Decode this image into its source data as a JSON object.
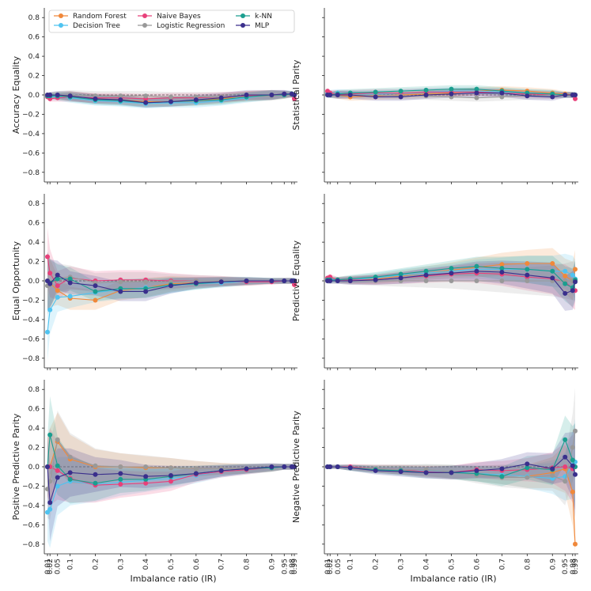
{
  "chart_data": {
    "type": "line",
    "x": [
      "0.01",
      "0.02",
      "0.05",
      "0.1",
      "0.2",
      "0.3",
      "0.4",
      "0.5",
      "0.6",
      "0.7",
      "0.8",
      "0.9",
      "0.95",
      "0.98",
      "0.99"
    ],
    "xlabel": "Imbalance ratio (IR)",
    "ylim": [
      -0.9,
      0.9
    ],
    "yticks": [
      "0.8",
      "0.6",
      "0.4",
      "0.2",
      "0.0",
      "−0.2",
      "−0.4",
      "−0.6",
      "−0.8"
    ],
    "legend": [
      {
        "name": "Random Forest",
        "color": "#f0883a"
      },
      {
        "name": "Decision Tree",
        "color": "#4fc3f0"
      },
      {
        "name": "Naive Bayes",
        "color": "#e8407a"
      },
      {
        "name": "Logistic Regression",
        "color": "#999999"
      },
      {
        "name": "k-NN",
        "color": "#1a9e8f"
      },
      {
        "name": "MLP",
        "color": "#3a2f8c"
      }
    ],
    "panels": [
      {
        "ylabel": "Accuracy Equality",
        "band": [
          0.02,
          0.03,
          0.04,
          0.05,
          0.05,
          0.05,
          0.05,
          0.05,
          0.05,
          0.05,
          0.05,
          0.05,
          0.04,
          0.03,
          0.03
        ],
        "series": [
          [
            0,
            -0.01,
            -0.01,
            -0.01,
            -0.04,
            -0.05,
            -0.07,
            -0.07,
            -0.06,
            -0.04,
            -0.01,
            0,
            0,
            0.01,
            0
          ],
          [
            -0.01,
            -0.02,
            -0.02,
            -0.03,
            -0.06,
            -0.07,
            -0.09,
            -0.08,
            -0.08,
            -0.06,
            -0.03,
            0,
            0.01,
            0.01,
            0
          ],
          [
            -0.02,
            -0.04,
            -0.03,
            -0.02,
            -0.03,
            -0.03,
            -0.04,
            -0.03,
            -0.03,
            -0.02,
            -0.01,
            0,
            0.01,
            0,
            -0.04
          ],
          [
            0,
            0,
            0,
            0,
            -0.01,
            -0.01,
            -0.01,
            -0.02,
            -0.02,
            -0.02,
            -0.02,
            -0.01,
            0,
            0,
            0
          ],
          [
            -0.01,
            -0.01,
            -0.01,
            -0.02,
            -0.05,
            -0.06,
            -0.08,
            -0.07,
            -0.06,
            -0.05,
            -0.02,
            0,
            0,
            0.01,
            0
          ],
          [
            0,
            0,
            0,
            -0.01,
            -0.04,
            -0.05,
            -0.08,
            -0.07,
            -0.05,
            -0.03,
            0,
            0,
            0.01,
            0.01,
            0
          ]
        ]
      },
      {
        "ylabel": "Statistical Parity",
        "band": [
          0.03,
          0.03,
          0.04,
          0.04,
          0.04,
          0.04,
          0.04,
          0.04,
          0.04,
          0.04,
          0.04,
          0.04,
          0.03,
          0.03,
          0.03
        ],
        "series": [
          [
            0.01,
            0.01,
            0,
            -0.02,
            -0.01,
            0,
            0.01,
            0.02,
            0.04,
            0.05,
            0.04,
            0.02,
            0.01,
            0,
            0
          ],
          [
            0.02,
            0.02,
            0.02,
            0.01,
            0.01,
            0.02,
            0.03,
            0.04,
            0.04,
            0.03,
            0.02,
            0.01,
            0,
            0,
            0
          ],
          [
            0.04,
            0.02,
            0.01,
            0.01,
            0.02,
            0.02,
            0.03,
            0.03,
            0.03,
            0.02,
            0.01,
            0,
            0,
            0,
            -0.04
          ],
          [
            0,
            0,
            0,
            0,
            0,
            -0.01,
            -0.01,
            -0.02,
            -0.03,
            -0.02,
            -0.01,
            0,
            0,
            0,
            0
          ],
          [
            0,
            0,
            0.01,
            0.02,
            0.03,
            0.04,
            0.05,
            0.06,
            0.06,
            0.04,
            0.02,
            0.01,
            0,
            0,
            0
          ],
          [
            0,
            0,
            0,
            0,
            -0.02,
            -0.02,
            0,
            0.01,
            0.02,
            0.02,
            -0.01,
            -0.02,
            0,
            0,
            0
          ]
        ]
      },
      {
        "ylabel": "Equal Opportunity",
        "band": [
          0.3,
          0.25,
          0.15,
          0.12,
          0.1,
          0.1,
          0.1,
          0.08,
          0.06,
          0.05,
          0.04,
          0.03,
          0.03,
          0.03,
          0.03
        ],
        "series": [
          [
            0,
            -0.02,
            -0.1,
            -0.18,
            -0.2,
            -0.1,
            -0.07,
            -0.03,
            -0.02,
            -0.01,
            -0.01,
            0,
            0,
            0,
            0
          ],
          [
            -0.53,
            -0.3,
            -0.17,
            -0.16,
            -0.12,
            -0.09,
            -0.07,
            -0.05,
            -0.03,
            -0.02,
            -0.01,
            0,
            0,
            0,
            0
          ],
          [
            0.25,
            0.08,
            -0.05,
            0.03,
            0,
            0.01,
            0.01,
            0,
            0,
            0,
            -0.01,
            -0.01,
            0,
            0,
            -0.04
          ],
          [
            -0.05,
            -0.04,
            0.03,
            0.04,
            -0.02,
            -0.01,
            -0.01,
            -0.01,
            0,
            0,
            0,
            0,
            0,
            0,
            0
          ],
          [
            0,
            -0.02,
            0.02,
            0.02,
            -0.11,
            -0.08,
            -0.08,
            -0.04,
            -0.03,
            -0.01,
            0,
            0,
            0,
            0,
            0
          ],
          [
            0,
            -0.03,
            0.06,
            -0.02,
            -0.05,
            -0.11,
            -0.11,
            -0.05,
            -0.02,
            -0.01,
            0,
            0,
            0,
            0,
            0
          ]
        ]
      },
      {
        "ylabel": "Predictive Equality",
        "band": [
          0.03,
          0.03,
          0.03,
          0.04,
          0.05,
          0.06,
          0.07,
          0.08,
          0.1,
          0.12,
          0.14,
          0.16,
          0.18,
          0.2,
          0.2
        ],
        "series": [
          [
            0.01,
            0.02,
            0.01,
            0.01,
            0.02,
            0.05,
            0.08,
            0.11,
            0.14,
            0.17,
            0.18,
            0.18,
            0.05,
            0,
            0.12
          ],
          [
            0.02,
            0.02,
            0.01,
            0.01,
            0.03,
            0.06,
            0.08,
            0.1,
            0.12,
            0.12,
            0.12,
            0.1,
            0.1,
            0.06,
            0.02
          ],
          [
            0.03,
            0.04,
            0.01,
            0.01,
            0.01,
            0.03,
            0.05,
            0.07,
            0.08,
            0.07,
            0.04,
            0.02,
            -0.01,
            -0.08,
            -0.1
          ],
          [
            0,
            0,
            0,
            0,
            0,
            0,
            0,
            0,
            0,
            0,
            0,
            0,
            0,
            0,
            0
          ],
          [
            0.01,
            0.01,
            0.01,
            0.02,
            0.04,
            0.07,
            0.1,
            0.13,
            0.15,
            0.13,
            0.12,
            0.1,
            -0.03,
            -0.07,
            0.01
          ],
          [
            0,
            0,
            0,
            0,
            0.01,
            0.03,
            0.06,
            0.08,
            0.1,
            0.09,
            0.06,
            0.03,
            -0.13,
            -0.1,
            -0.01
          ]
        ]
      },
      {
        "ylabel": "Positive Predictive Parity",
        "band": [
          0.3,
          0.4,
          0.3,
          0.25,
          0.18,
          0.14,
          0.12,
          0.1,
          0.08,
          0.06,
          0.05,
          0.04,
          0.03,
          0.03,
          0.03
        ],
        "series": [
          [
            0,
            0,
            0.26,
            0.08,
            0,
            0,
            -0.01,
            -0.01,
            -0.02,
            -0.02,
            -0.02,
            -0.01,
            0,
            0,
            0
          ],
          [
            -0.47,
            -0.44,
            -0.2,
            -0.15,
            -0.18,
            -0.16,
            -0.14,
            -0.12,
            -0.09,
            -0.05,
            -0.03,
            -0.01,
            0,
            0,
            0
          ],
          [
            0,
            0,
            -0.04,
            -0.12,
            -0.19,
            -0.18,
            -0.17,
            -0.15,
            -0.08,
            -0.05,
            -0.03,
            -0.01,
            0,
            0,
            0
          ],
          [
            -0.23,
            -0.15,
            0.28,
            0.1,
            0.01,
            0,
            0,
            -0.01,
            -0.02,
            -0.02,
            -0.02,
            -0.01,
            0,
            0,
            0
          ],
          [
            0,
            0.33,
            0.01,
            -0.13,
            -0.17,
            -0.13,
            -0.13,
            -0.1,
            -0.07,
            -0.04,
            -0.02,
            -0.01,
            0,
            0,
            0
          ],
          [
            0,
            -0.37,
            -0.11,
            -0.06,
            -0.08,
            -0.07,
            -0.1,
            -0.09,
            -0.07,
            -0.04,
            -0.02,
            0,
            0,
            0,
            0
          ]
        ]
      },
      {
        "ylabel": "Negative Predictive Parity",
        "band": [
          0.02,
          0.02,
          0.02,
          0.03,
          0.04,
          0.05,
          0.06,
          0.07,
          0.08,
          0.1,
          0.12,
          0.16,
          0.25,
          0.35,
          0.45
        ],
        "series": [
          [
            0,
            0,
            0,
            -0.01,
            -0.02,
            -0.03,
            -0.04,
            -0.05,
            -0.07,
            -0.08,
            -0.1,
            -0.06,
            -0.02,
            -0.26,
            -0.8
          ],
          [
            0,
            0,
            0,
            -0.01,
            -0.02,
            -0.03,
            -0.04,
            -0.05,
            -0.07,
            -0.08,
            -0.1,
            -0.12,
            -0.1,
            0.02,
            0.05
          ],
          [
            0,
            0,
            0,
            0,
            -0.02,
            -0.03,
            -0.05,
            -0.06,
            -0.03,
            -0.04,
            -0.03,
            -0.01,
            0,
            -0.02,
            0
          ],
          [
            0,
            0,
            0,
            -0.01,
            -0.02,
            -0.03,
            -0.03,
            -0.05,
            -0.09,
            -0.11,
            -0.11,
            -0.09,
            -0.15,
            0.2,
            0.37
          ],
          [
            0,
            0,
            0,
            -0.01,
            -0.03,
            -0.04,
            -0.06,
            -0.06,
            -0.07,
            -0.1,
            -0.01,
            -0.03,
            0.28,
            0.07,
            0
          ],
          [
            0,
            0,
            0,
            -0.01,
            -0.04,
            -0.05,
            -0.06,
            -0.06,
            -0.04,
            -0.02,
            0.03,
            -0.02,
            0.1,
            0.01,
            -0.08
          ]
        ]
      }
    ]
  }
}
